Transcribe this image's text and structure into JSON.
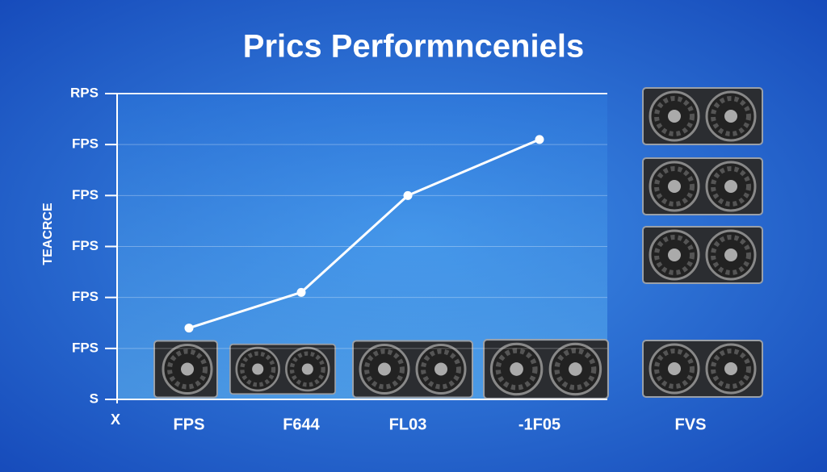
{
  "chart_data": {
    "type": "line",
    "title": "Prics Performnceniels",
    "y_label": "TEACRCE",
    "x_label": "X",
    "categories": [
      "FPS",
      "F644",
      "FL03",
      "-1F05",
      "FVS"
    ],
    "values": [
      1.4,
      2.1,
      4.0,
      5.1,
      null
    ],
    "color": "#ffffff",
    "ylim": [
      0,
      6
    ],
    "yticks": [
      {
        "value": 0,
        "label": "S"
      },
      {
        "value": 1,
        "label": "FPS"
      },
      {
        "value": 2,
        "label": "FPS"
      },
      {
        "value": 3,
        "label": "FPS"
      },
      {
        "value": 4,
        "label": "FPS"
      },
      {
        "value": 5,
        "label": "FPS"
      },
      {
        "value": 6,
        "label": "RPS"
      }
    ],
    "grid": true
  }
}
